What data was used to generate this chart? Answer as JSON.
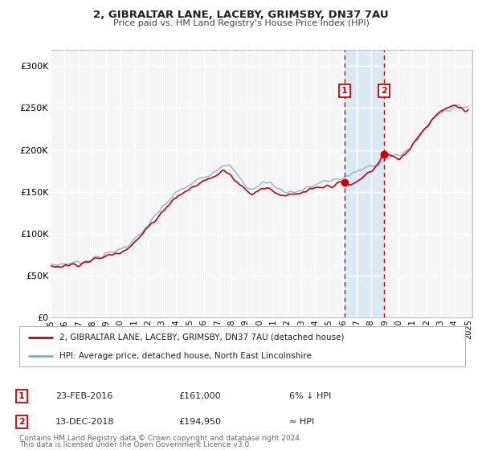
{
  "title": "2, GIBRALTAR LANE, LACEBY, GRIMSBY, DN37 7AU",
  "subtitle": "Price paid vs. HM Land Registry's House Price Index (HPI)",
  "ylim": [
    0,
    320000
  ],
  "xlim": [
    1995.0,
    2025.3
  ],
  "yticks": [
    0,
    50000,
    100000,
    150000,
    200000,
    250000,
    300000
  ],
  "ytick_labels": [
    "£0",
    "£50K",
    "£100K",
    "£150K",
    "£200K",
    "£250K",
    "£300K"
  ],
  "xtick_years": [
    1995,
    1996,
    1997,
    1998,
    1999,
    2000,
    2001,
    2002,
    2003,
    2004,
    2005,
    2006,
    2007,
    2008,
    2009,
    2010,
    2011,
    2012,
    2013,
    2014,
    2015,
    2016,
    2017,
    2018,
    2019,
    2020,
    2021,
    2022,
    2023,
    2024,
    2025
  ],
  "sale1_x": 2016.12,
  "sale1_y": 161000,
  "sale2_x": 2018.95,
  "sale2_y": 194950,
  "vline1_x": 2016.12,
  "vline2_x": 2018.95,
  "shade_x1": 2016.12,
  "shade_x2": 2018.95,
  "line_color_red": "#cc0000",
  "line_color_blue": "#7aaed6",
  "shade_color": "#daeaf5",
  "plot_bg": "#f5f5f5",
  "grid_color": "#e8e8e8",
  "fig_bg": "#ffffff",
  "legend_label_red": "2, GIBRALTAR LANE, LACEBY, GRIMSBY, DN37 7AU (detached house)",
  "legend_label_blue": "HPI: Average price, detached house, North East Lincolnshire",
  "footer1": "Contains HM Land Registry data © Crown copyright and database right 2024.",
  "footer2": "This data is licensed under the Open Government Licence v3.0.",
  "table_row1": [
    "1",
    "23-FEB-2016",
    "£161,000",
    "6% ↓ HPI"
  ],
  "table_row2": [
    "2",
    "13-DEC-2018",
    "£194,950",
    "≈ HPI"
  ],
  "hpi_anchors": [
    [
      1995.0,
      62000
    ],
    [
      1996.0,
      64000
    ],
    [
      1997.0,
      66000
    ],
    [
      1998.0,
      70000
    ],
    [
      1999.0,
      75000
    ],
    [
      2000.0,
      82000
    ],
    [
      2001.0,
      92000
    ],
    [
      2002.0,
      110000
    ],
    [
      2003.0,
      130000
    ],
    [
      2004.0,
      148000
    ],
    [
      2005.0,
      158000
    ],
    [
      2006.0,
      168000
    ],
    [
      2007.0,
      178000
    ],
    [
      2007.5,
      183000
    ],
    [
      2008.0,
      178000
    ],
    [
      2008.5,
      168000
    ],
    [
      2009.0,
      158000
    ],
    [
      2009.5,
      153000
    ],
    [
      2010.0,
      158000
    ],
    [
      2010.5,
      162000
    ],
    [
      2011.0,
      158000
    ],
    [
      2011.5,
      153000
    ],
    [
      2012.0,
      150000
    ],
    [
      2012.5,
      150000
    ],
    [
      2013.0,
      152000
    ],
    [
      2013.5,
      155000
    ],
    [
      2014.0,
      158000
    ],
    [
      2014.5,
      161000
    ],
    [
      2015.0,
      163000
    ],
    [
      2015.5,
      165000
    ],
    [
      2016.0,
      167000
    ],
    [
      2016.5,
      170000
    ],
    [
      2017.0,
      174000
    ],
    [
      2017.5,
      177000
    ],
    [
      2018.0,
      181000
    ],
    [
      2018.5,
      184000
    ],
    [
      2019.0,
      188000
    ],
    [
      2019.5,
      192000
    ],
    [
      2020.0,
      193000
    ],
    [
      2020.5,
      198000
    ],
    [
      2021.0,
      207000
    ],
    [
      2021.5,
      218000
    ],
    [
      2022.0,
      228000
    ],
    [
      2022.5,
      238000
    ],
    [
      2023.0,
      245000
    ],
    [
      2023.5,
      248000
    ],
    [
      2024.0,
      250000
    ],
    [
      2024.5,
      252000
    ],
    [
      2025.0,
      253000
    ]
  ],
  "price_anchors": [
    [
      1995.0,
      60000
    ],
    [
      1996.0,
      62000
    ],
    [
      1997.0,
      64000
    ],
    [
      1998.0,
      68000
    ],
    [
      1999.0,
      73000
    ],
    [
      2000.0,
      79000
    ],
    [
      2001.0,
      89000
    ],
    [
      2002.0,
      107000
    ],
    [
      2003.0,
      126000
    ],
    [
      2004.0,
      143000
    ],
    [
      2005.0,
      153000
    ],
    [
      2006.0,
      163000
    ],
    [
      2007.0,
      171000
    ],
    [
      2007.5,
      176000
    ],
    [
      2008.0,
      170000
    ],
    [
      2008.5,
      160000
    ],
    [
      2009.0,
      152000
    ],
    [
      2009.5,
      148000
    ],
    [
      2010.0,
      153000
    ],
    [
      2010.5,
      155000
    ],
    [
      2011.0,
      151000
    ],
    [
      2011.5,
      147000
    ],
    [
      2012.0,
      145000
    ],
    [
      2012.5,
      146000
    ],
    [
      2013.0,
      148000
    ],
    [
      2013.5,
      151000
    ],
    [
      2014.0,
      153000
    ],
    [
      2014.5,
      155000
    ],
    [
      2015.0,
      157000
    ],
    [
      2015.5,
      159000
    ],
    [
      2016.0,
      161000
    ],
    [
      2016.12,
      161000
    ],
    [
      2016.5,
      158000
    ],
    [
      2017.0,
      162000
    ],
    [
      2017.5,
      168000
    ],
    [
      2018.0,
      175000
    ],
    [
      2018.5,
      183000
    ],
    [
      2018.95,
      194950
    ],
    [
      2019.0,
      195000
    ],
    [
      2019.5,
      192000
    ],
    [
      2020.0,
      190000
    ],
    [
      2020.5,
      196000
    ],
    [
      2021.0,
      207000
    ],
    [
      2021.5,
      218000
    ],
    [
      2022.0,
      228000
    ],
    [
      2022.5,
      238000
    ],
    [
      2023.0,
      247000
    ],
    [
      2023.5,
      250000
    ],
    [
      2024.0,
      252000
    ],
    [
      2024.5,
      248000
    ],
    [
      2025.0,
      247000
    ]
  ]
}
